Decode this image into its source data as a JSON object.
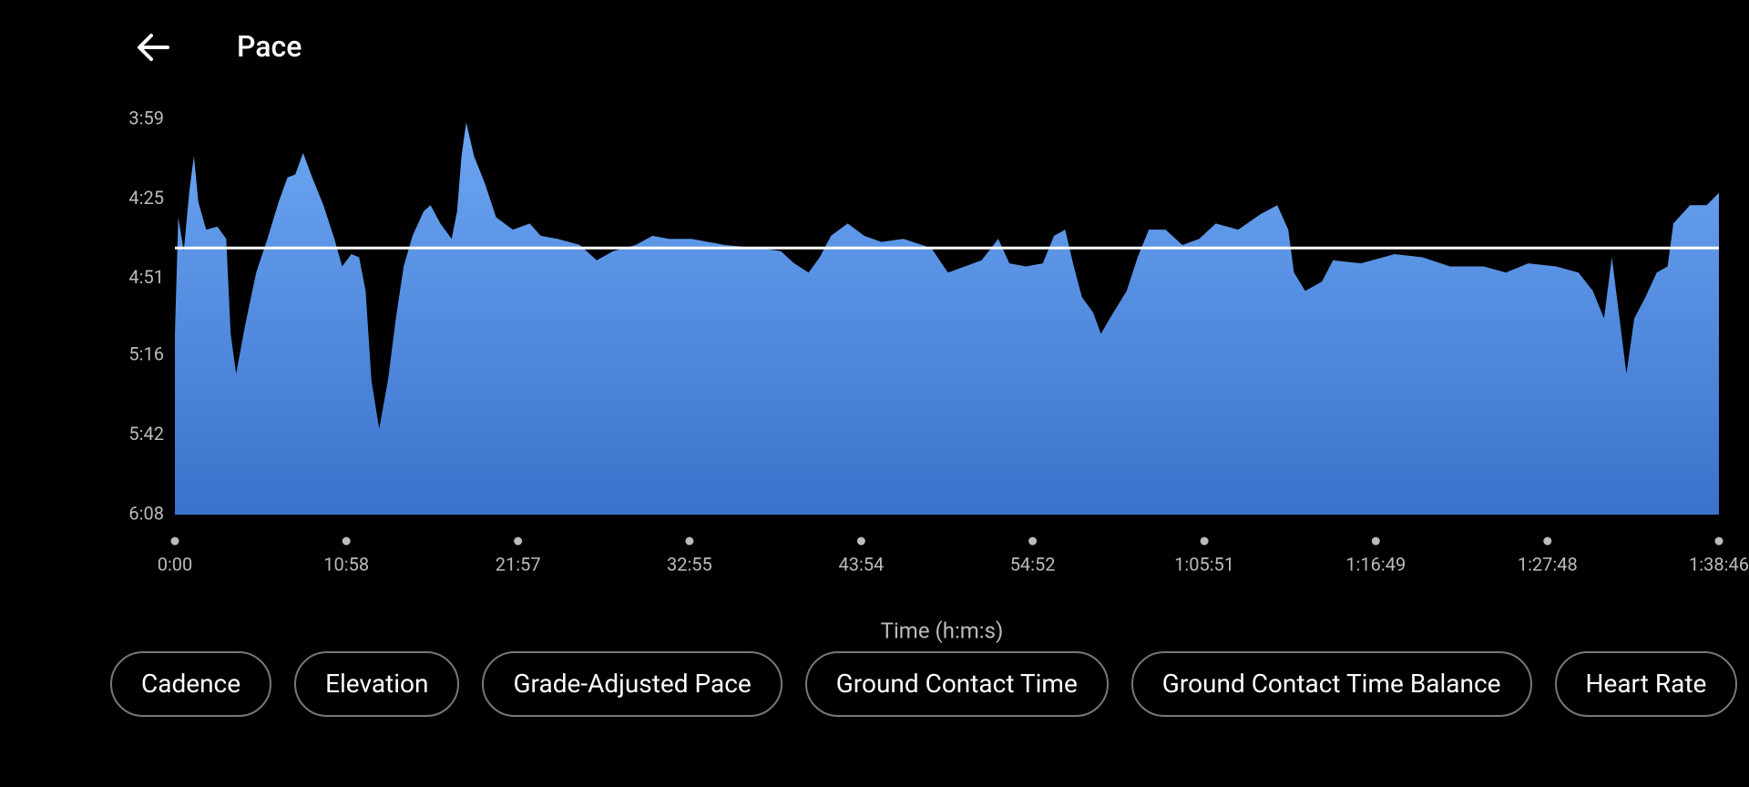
{
  "header": {
    "title": "Pace"
  },
  "chart_data": {
    "type": "area",
    "x_label": "Time (h:m:s)",
    "xlim": [
      0,
      5926
    ],
    "xticks": [
      {
        "value": 0,
        "label": "0:00"
      },
      {
        "value": 658,
        "label": "10:58"
      },
      {
        "value": 1317,
        "label": "21:57"
      },
      {
        "value": 1975,
        "label": "32:55"
      },
      {
        "value": 2634,
        "label": "43:54"
      },
      {
        "value": 3292,
        "label": "54:52"
      },
      {
        "value": 3951,
        "label": "1:05:51"
      },
      {
        "value": 4609,
        "label": "1:16:49"
      },
      {
        "value": 5268,
        "label": "1:27:48"
      },
      {
        "value": 5926,
        "label": "1:38:46"
      }
    ],
    "ylim": [
      239,
      368
    ],
    "y_inverted": true,
    "yticks": [
      {
        "value": 239,
        "label": "3:59"
      },
      {
        "value": 265,
        "label": "4:25"
      },
      {
        "value": 291,
        "label": "4:51"
      },
      {
        "value": 316,
        "label": "5:16"
      },
      {
        "value": 342,
        "label": "5:42"
      },
      {
        "value": 368,
        "label": "6:08"
      }
    ],
    "color_top": "#6ca6f2",
    "color_bottom": "#3a72cc",
    "average_value": 281,
    "average_color": "#ffffff",
    "x": [
      0,
      13,
      34,
      56,
      73,
      90,
      120,
      163,
      197,
      214,
      235,
      270,
      312,
      355,
      398,
      432,
      462,
      492,
      527,
      570,
      612,
      642,
      677,
      707,
      732,
      754,
      784,
      818,
      848,
      878,
      912,
      955,
      981,
      1019,
      1062,
      1083,
      1100,
      1118,
      1148,
      1190,
      1233,
      1297,
      1362,
      1404,
      1469,
      1554,
      1619,
      1683,
      1768,
      1833,
      1897,
      1983,
      2111,
      2240,
      2325,
      2377,
      2432,
      2475,
      2518,
      2582,
      2646,
      2711,
      2796,
      2903,
      2967,
      3032,
      3096,
      3160,
      3203,
      3267,
      3331,
      3374,
      3417,
      3447,
      3481,
      3524,
      3554,
      3588,
      3653,
      3695,
      3738,
      3802,
      3867,
      3931,
      3995,
      4081,
      4166,
      4231,
      4273,
      4295,
      4338,
      4402,
      4445,
      4552,
      4680,
      4787,
      4894,
      5023,
      5108,
      5194,
      5301,
      5387,
      5442,
      5485,
      5515,
      5571,
      5601,
      5644,
      5687,
      5729,
      5751,
      5815,
      5879,
      5926
    ],
    "values": [
      309,
      271,
      282,
      262,
      251,
      266,
      275,
      274,
      278,
      309,
      322,
      306,
      289,
      278,
      266,
      258,
      257,
      250,
      258,
      267,
      278,
      287,
      283,
      284,
      295,
      324,
      340,
      324,
      304,
      287,
      277,
      269,
      267,
      273,
      278,
      269,
      251,
      240,
      251,
      260,
      271,
      275,
      273,
      277,
      278,
      280,
      285,
      282,
      280,
      277,
      278,
      278,
      280,
      281,
      282,
      286,
      289,
      284,
      277,
      273,
      277,
      279,
      278,
      281,
      289,
      287,
      285,
      278,
      286,
      287,
      286,
      277,
      275,
      286,
      297,
      302,
      309,
      304,
      295,
      284,
      275,
      275,
      280,
      278,
      273,
      275,
      270,
      267,
      275,
      289,
      295,
      292,
      285,
      286,
      283,
      284,
      287,
      287,
      289,
      286,
      287,
      289,
      295,
      304,
      284,
      322,
      304,
      297,
      289,
      287,
      273,
      267,
      267,
      263
    ]
  },
  "chips": [
    "Cadence",
    "Elevation",
    "Grade-Adjusted Pace",
    "Ground Contact Time",
    "Ground Contact Time Balance",
    "Heart Rate"
  ]
}
